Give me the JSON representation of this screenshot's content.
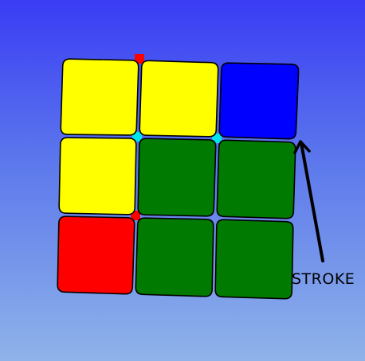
{
  "cube_face": {
    "rows": [
      [
        "yellow",
        "yellow",
        "blue"
      ],
      [
        "yellow",
        "green",
        "green"
      ],
      [
        "red",
        "green",
        "green"
      ]
    ],
    "colors": {
      "yellow": "#ffff00",
      "blue": "#0000ff",
      "green": "#007a00",
      "red": "#ff0000"
    },
    "gap_colors": {
      "top_row_gaps": "#ff0000",
      "middle_gaps": "#00e5ee"
    }
  },
  "annotation": {
    "label": "STROKE"
  }
}
